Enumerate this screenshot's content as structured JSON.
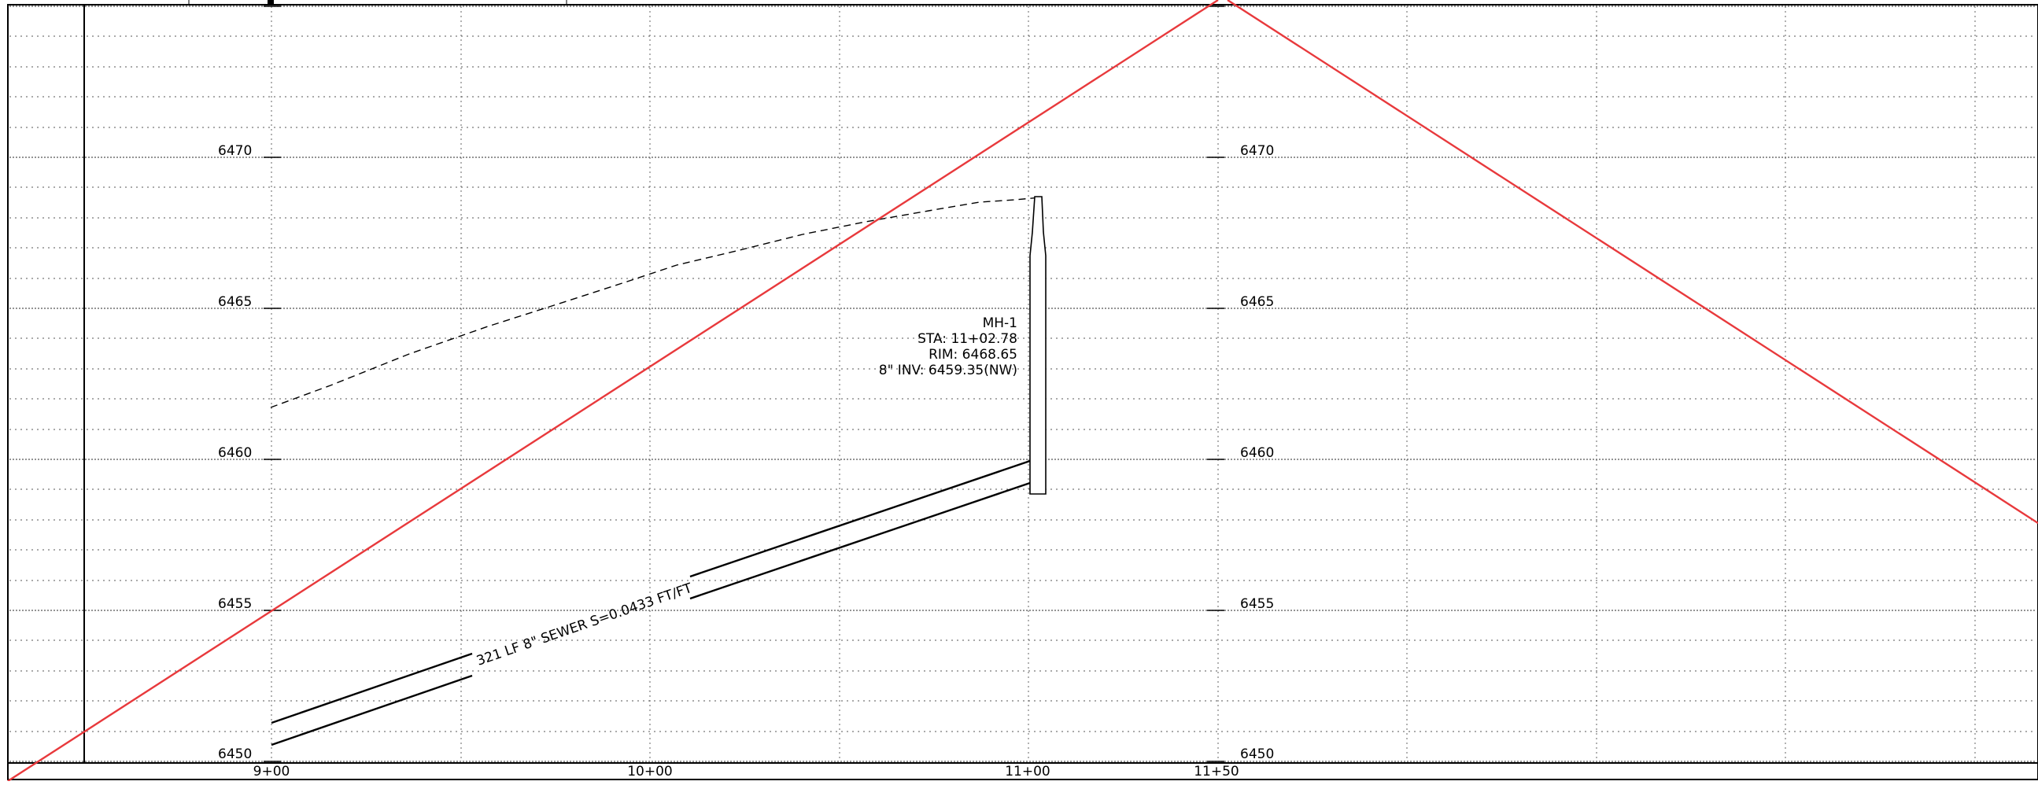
{
  "profile": {
    "elevation_labels": [
      "6470",
      "6465",
      "6460",
      "6455",
      "6450"
    ],
    "station_labels": [
      "9+00",
      "10+00",
      "11+00",
      "11+50"
    ],
    "manhole": {
      "name": "MH-1",
      "station": "STA: 11+02.78",
      "rim": "RIM: 6468.65",
      "invert": "8\" INV: 6459.35(NW)"
    },
    "pipe_label": "321 LF 8\" SEWER S=0.0433 FT/FT",
    "colors": {
      "red_line": "#e8393c",
      "grid": "#555555",
      "linework": "#000000"
    }
  }
}
